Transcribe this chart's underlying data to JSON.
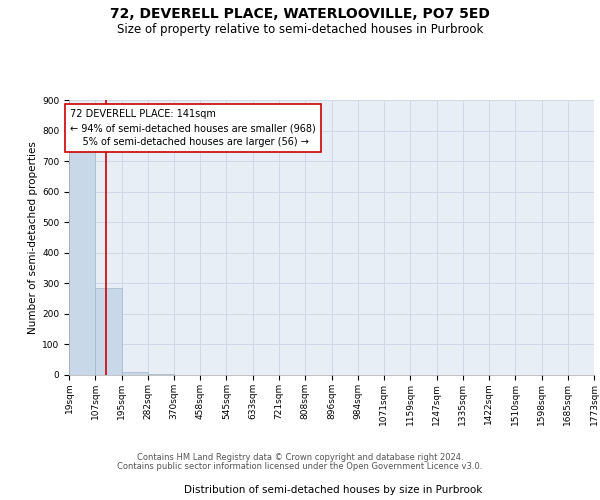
{
  "title": "72, DEVERELL PLACE, WATERLOOVILLE, PO7 5ED",
  "subtitle": "Size of property relative to semi-detached houses in Purbrook",
  "xlabel": "Distribution of semi-detached houses by size in Purbrook",
  "ylabel": "Number of semi-detached properties",
  "bin_labels": [
    "19sqm",
    "107sqm",
    "195sqm",
    "282sqm",
    "370sqm",
    "458sqm",
    "545sqm",
    "633sqm",
    "721sqm",
    "808sqm",
    "896sqm",
    "984sqm",
    "1071sqm",
    "1159sqm",
    "1247sqm",
    "1335sqm",
    "1422sqm",
    "1510sqm",
    "1598sqm",
    "1685sqm",
    "1773sqm"
  ],
  "bin_edges": [
    19,
    107,
    195,
    282,
    370,
    458,
    545,
    633,
    721,
    808,
    896,
    984,
    1071,
    1159,
    1247,
    1335,
    1422,
    1510,
    1598,
    1685,
    1773
  ],
  "bar_heights": [
    750,
    285,
    10,
    2,
    1,
    1,
    0,
    0,
    0,
    0,
    0,
    0,
    0,
    0,
    0,
    0,
    0,
    0,
    0,
    0
  ],
  "bar_color": "#c8d8e8",
  "bar_edge_color": "#a0b8cc",
  "grid_color": "#d0d8e8",
  "background_color": "#e8eef5",
  "marker_value": 141,
  "marker_color": "#cc0000",
  "annotation_title": "72 DEVERELL PLACE: 141sqm",
  "annotation_line1": "← 94% of semi-detached houses are smaller (968)",
  "annotation_line2": "    5% of semi-detached houses are larger (56) →",
  "ylim": [
    0,
    900
  ],
  "yticks": [
    0,
    100,
    200,
    300,
    400,
    500,
    600,
    700,
    800,
    900
  ],
  "footer_line1": "Contains HM Land Registry data © Crown copyright and database right 2024.",
  "footer_line2": "Contains public sector information licensed under the Open Government Licence v3.0.",
  "title_fontsize": 10,
  "subtitle_fontsize": 8.5,
  "axis_label_fontsize": 7.5,
  "tick_fontsize": 6.5,
  "annotation_fontsize": 7,
  "footer_fontsize": 6
}
